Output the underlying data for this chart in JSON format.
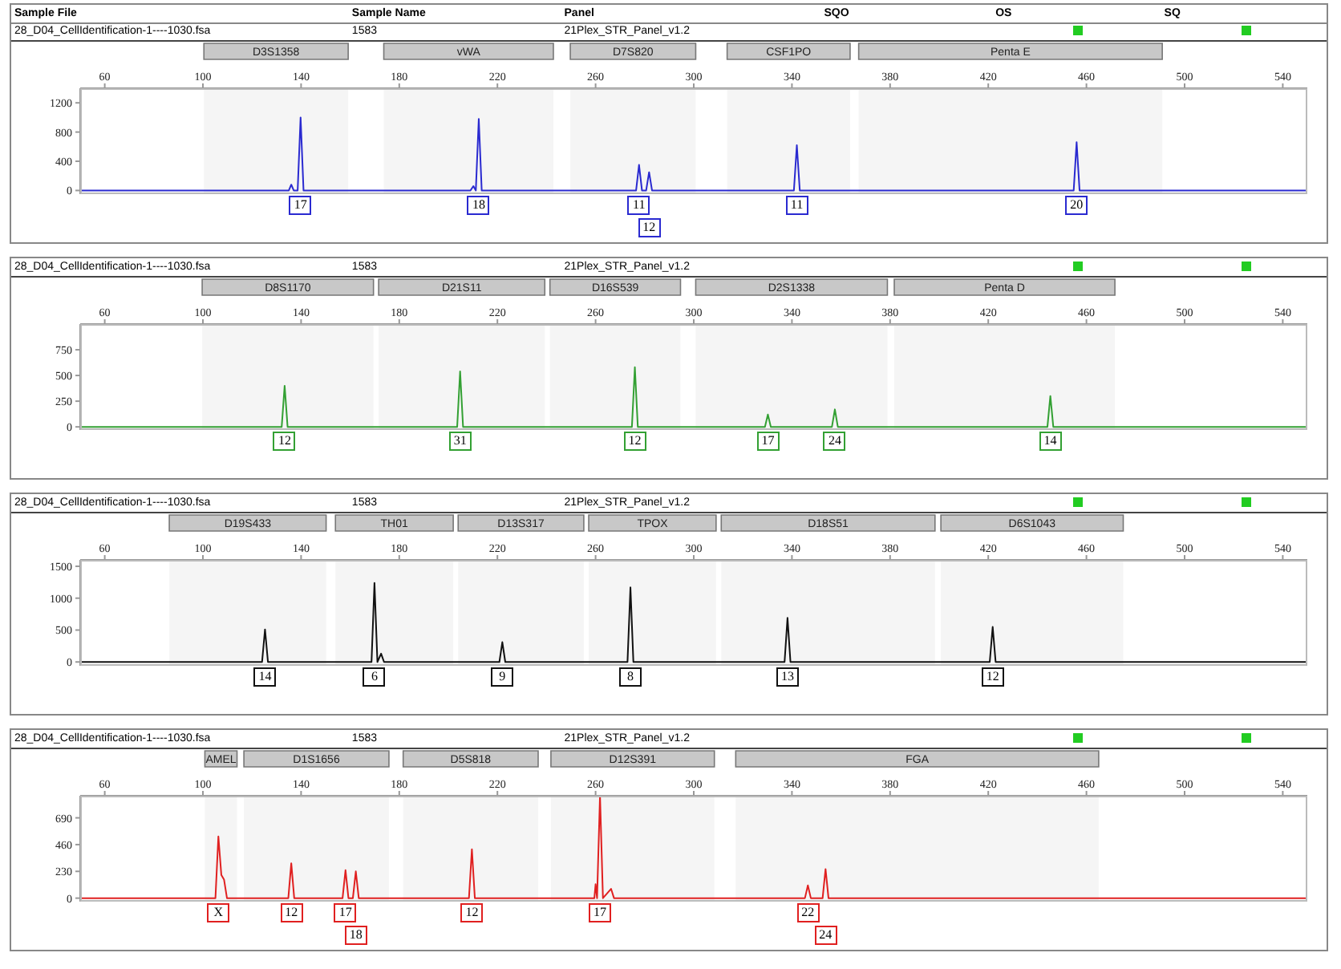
{
  "chart_data": [
    {
      "type": "line",
      "color": "#2a2ad0",
      "xlim": [
        50,
        550
      ],
      "xticks": [
        60,
        100,
        140,
        180,
        220,
        260,
        300,
        340,
        380,
        420,
        460,
        500,
        540
      ],
      "ylim": [
        -50,
        1400
      ],
      "yticks": [
        0,
        400,
        800,
        1200
      ],
      "x": [
        50,
        135,
        136,
        137,
        138.6,
        139.8,
        141,
        209,
        210.2,
        211.2,
        212.4,
        213.6,
        276.5,
        277.7,
        278.9,
        280.6,
        281.8,
        283,
        340.8,
        342,
        343.2,
        454.8,
        456,
        457.2,
        550
      ],
      "values": [
        0,
        0,
        80,
        0,
        0,
        1000,
        0,
        0,
        60,
        0,
        980,
        0,
        0,
        350,
        0,
        0,
        250,
        0,
        0,
        620,
        0,
        0,
        660,
        0,
        0
      ],
      "bands": [
        {
          "axis": "x",
          "from": 100.4,
          "to": 159.2,
          "label": "D3S1358",
          "color": "#c8c8c8"
        },
        {
          "axis": "x",
          "from": 173.7,
          "to": 242.8,
          "label": "vWA",
          "color": "#c8c8c8"
        },
        {
          "axis": "x",
          "from": 249.7,
          "to": 300.8,
          "label": "D7S820",
          "color": "#c8c8c8"
        },
        {
          "axis": "x",
          "from": 313.6,
          "to": 363.7,
          "label": "CSF1PO",
          "color": "#c8c8c8"
        },
        {
          "axis": "x",
          "from": 367.2,
          "to": 490.9,
          "label": "Penta E",
          "color": "#c8c8c8"
        }
      ],
      "annotations": [
        "Sample File",
        "Sample Name",
        "Panel",
        "SQO",
        "OS",
        "SQ",
        "28_D04_CellIdentification-1----1030.fsa",
        "1583",
        "21Plex_STR_Panel_v1.2",
        {
          "text": "17",
          "x": 139.8,
          "y": 0
        },
        {
          "text": "18",
          "x": 212.4,
          "y": 0
        },
        {
          "text": "11",
          "x": 277.7,
          "y": 0
        },
        {
          "text": "12",
          "x": 281.8,
          "y": 0
        },
        {
          "text": "11",
          "x": 342,
          "y": 0
        },
        {
          "text": "20",
          "x": 456,
          "y": 0
        }
      ]
    },
    {
      "type": "line",
      "color": "#33a033",
      "xlim": [
        50,
        550
      ],
      "xticks": [
        60,
        100,
        140,
        180,
        220,
        260,
        300,
        340,
        380,
        420,
        460,
        500,
        540
      ],
      "ylim": [
        -30,
        1000
      ],
      "yticks": [
        0,
        250,
        500,
        750
      ],
      "x": [
        50,
        132.1,
        133.3,
        134.5,
        203.6,
        204.8,
        206,
        274.8,
        276,
        277.2,
        329,
        330.2,
        331.4,
        356.3,
        357.5,
        358.7,
        444.1,
        445.3,
        446.5,
        550
      ],
      "values": [
        0,
        0,
        400,
        0,
        0,
        540,
        0,
        0,
        580,
        0,
        0,
        120,
        0,
        0,
        170,
        0,
        0,
        300,
        0,
        0
      ],
      "bands": [
        {
          "axis": "x",
          "from": 99.7,
          "to": 169.5,
          "label": "D8S1170",
          "color": "#c8c8c8"
        },
        {
          "axis": "x",
          "from": 171.6,
          "to": 239.3,
          "label": "D21S11",
          "color": "#c8c8c8"
        },
        {
          "axis": "x",
          "from": 241.4,
          "to": 294.6,
          "label": "D16S539",
          "color": "#c8c8c8"
        },
        {
          "axis": "x",
          "from": 300.8,
          "to": 378.9,
          "label": "D2S1338",
          "color": "#c8c8c8"
        },
        {
          "axis": "x",
          "from": 381.7,
          "to": 471.6,
          "label": "Penta D",
          "color": "#c8c8c8"
        }
      ],
      "annotations": [
        "28_D04_CellIdentification-1----1030.fsa",
        "1583",
        "21Plex_STR_Panel_v1.2",
        {
          "text": "12",
          "x": 133.3,
          "y": 0
        },
        {
          "text": "31",
          "x": 204.8,
          "y": 0
        },
        {
          "text": "12",
          "x": 276,
          "y": 0
        },
        {
          "text": "17",
          "x": 330.2,
          "y": 0
        },
        {
          "text": "24",
          "x": 357.5,
          "y": 0
        },
        {
          "text": "14",
          "x": 445.3,
          "y": 0
        }
      ]
    },
    {
      "type": "line",
      "color": "#111111",
      "xlim": [
        50,
        550
      ],
      "xticks": [
        60,
        100,
        140,
        180,
        220,
        260,
        300,
        340,
        380,
        420,
        460,
        500,
        540
      ],
      "ylim": [
        -60,
        1600
      ],
      "yticks": [
        0,
        500,
        1000,
        1500
      ],
      "x": [
        50,
        124.1,
        125.3,
        126.5,
        168.7,
        169.9,
        171.1,
        172.6,
        173.8,
        220.8,
        222,
        223.2,
        273,
        274.2,
        275.4,
        337,
        338.2,
        339.4,
        420.6,
        421.8,
        423,
        550
      ],
      "values": [
        0,
        0,
        510,
        0,
        0,
        1240,
        0,
        130,
        0,
        0,
        310,
        0,
        0,
        1170,
        0,
        0,
        690,
        0,
        0,
        550,
        0,
        0
      ],
      "bands": [
        {
          "axis": "x",
          "from": 86.3,
          "to": 150.2,
          "label": "D19S433",
          "color": "#c8c8c8"
        },
        {
          "axis": "x",
          "from": 154,
          "to": 202,
          "label": "TH01",
          "color": "#c8c8c8"
        },
        {
          "axis": "x",
          "from": 204,
          "to": 255.2,
          "label": "D13S317",
          "color": "#c8c8c8"
        },
        {
          "axis": "x",
          "from": 257.2,
          "to": 309.1,
          "label": "TPOX",
          "color": "#c8c8c8"
        },
        {
          "axis": "x",
          "from": 311.2,
          "to": 398.3,
          "label": "D18S51",
          "color": "#c8c8c8"
        },
        {
          "axis": "x",
          "from": 400.7,
          "to": 475,
          "label": "D6S1043",
          "color": "#c8c8c8"
        }
      ],
      "annotations": [
        "28_D04_CellIdentification-1----1030.fsa",
        "1583",
        "21Plex_STR_Panel_v1.2",
        {
          "text": "14",
          "x": 125.3,
          "y": 0
        },
        {
          "text": "6",
          "x": 169.9,
          "y": 0
        },
        {
          "text": "9",
          "x": 222,
          "y": 0
        },
        {
          "text": "8",
          "x": 274.2,
          "y": 0
        },
        {
          "text": "13",
          "x": 338.2,
          "y": 0
        },
        {
          "text": "12",
          "x": 421.8,
          "y": 0
        }
      ]
    },
    {
      "type": "line",
      "color": "#e02020",
      "xlim": [
        50,
        550
      ],
      "xticks": [
        60,
        100,
        140,
        180,
        220,
        260,
        300,
        340,
        380,
        420,
        460,
        500,
        540
      ],
      "ylim": [
        -30,
        880
      ],
      "yticks": [
        0,
        230,
        460,
        690
      ],
      "x": [
        50,
        105.1,
        106.3,
        107.5,
        108.6,
        109.8,
        134.8,
        136,
        137.2,
        156.9,
        158.1,
        159.3,
        161.1,
        162.3,
        163.5,
        208.4,
        209.6,
        210.8,
        259.5,
        260,
        260.6,
        261.8,
        263,
        266.3,
        267.5,
        345.3,
        346.5,
        347.7,
        352.5,
        353.7,
        354.9,
        550
      ],
      "values": [
        0,
        0,
        530,
        200,
        160,
        0,
        0,
        300,
        0,
        0,
        240,
        0,
        0,
        230,
        0,
        0,
        420,
        0,
        0,
        120,
        0,
        880,
        0,
        80,
        0,
        0,
        110,
        0,
        0,
        250,
        0,
        0
      ],
      "bands": [
        {
          "axis": "x",
          "from": 100.8,
          "to": 113.9,
          "label": "AMEL",
          "color": "#c8c8c8"
        },
        {
          "axis": "x",
          "from": 116.7,
          "to": 175.8,
          "label": "D1S1656",
          "color": "#c8c8c8"
        },
        {
          "axis": "x",
          "from": 181.6,
          "to": 236.6,
          "label": "D5S818",
          "color": "#c8c8c8"
        },
        {
          "axis": "x",
          "from": 241.8,
          "to": 308.4,
          "label": "D12S391",
          "color": "#c8c8c8"
        },
        {
          "axis": "x",
          "from": 317.1,
          "to": 465,
          "label": "FGA",
          "color": "#c8c8c8"
        }
      ],
      "annotations": [
        "28_D04_CellIdentification-1----1030.fsa",
        "1583",
        "21Plex_STR_Panel_v1.2",
        {
          "text": "X",
          "x": 106.3,
          "y": 0
        },
        {
          "text": "12",
          "x": 136,
          "y": 0
        },
        {
          "text": "17",
          "x": 158.1,
          "y": 0
        },
        {
          "text": "18",
          "x": 162.3,
          "y": 0
        },
        {
          "text": "12",
          "x": 209.6,
          "y": 0
        },
        {
          "text": "17",
          "x": 261.8,
          "y": 0
        },
        {
          "text": "22",
          "x": 346.5,
          "y": 0
        },
        {
          "text": "24",
          "x": 353.7,
          "y": 0
        }
      ]
    }
  ]
}
